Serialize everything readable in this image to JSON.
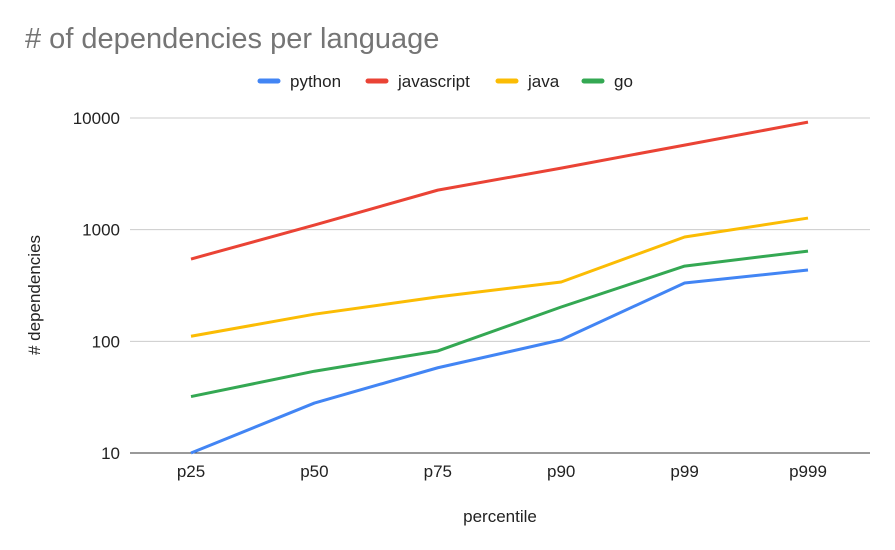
{
  "chart_data": {
    "type": "line",
    "title": "# of dependencies per language",
    "xlabel": "percentile",
    "ylabel": "# dependencies",
    "y_scale": "log",
    "ylim": [
      10,
      10000
    ],
    "y_ticks": [
      "10",
      "100",
      "1000",
      "10000"
    ],
    "grid": true,
    "legend_position": "top",
    "categories": [
      "p25",
      "p50",
      "p75",
      "p90",
      "p99",
      "p999"
    ],
    "series": [
      {
        "name": "python",
        "color": "#4285f4",
        "values": [
          10,
          28,
          58,
          103,
          333,
          435
        ]
      },
      {
        "name": "javascript",
        "color": "#ea4335",
        "values": [
          546,
          1100,
          2260,
          3560,
          5720,
          9190
        ]
      },
      {
        "name": "java",
        "color": "#fbbc04",
        "values": [
          111,
          175,
          250,
          340,
          860,
          1270
        ]
      },
      {
        "name": "go",
        "color": "#34a853",
        "values": [
          32,
          54,
          82,
          203,
          472,
          643
        ]
      }
    ]
  }
}
